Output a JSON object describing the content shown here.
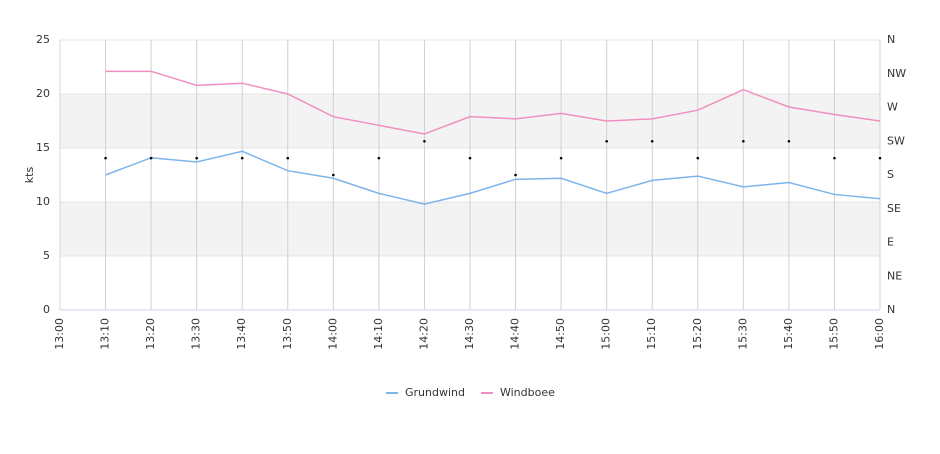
{
  "chart_data": {
    "type": "line",
    "ylabel": "kts",
    "categories": [
      "13:00",
      "13:10",
      "13:20",
      "13:30",
      "13:40",
      "13:50",
      "14:00",
      "14:10",
      "14:20",
      "14:30",
      "14:40",
      "14:50",
      "15:00",
      "15:10",
      "15:20",
      "15:30",
      "15:40",
      "15:50",
      "16:00"
    ],
    "series": [
      {
        "name": "Grundwind",
        "color": "#7cb5ec",
        "values": [
          null,
          12.5,
          14.1,
          13.7,
          14.7,
          12.9,
          12.2,
          10.8,
          9.8,
          10.8,
          12.1,
          12.2,
          10.8,
          12.0,
          12.4,
          11.4,
          11.8,
          10.7,
          10.3
        ]
      },
      {
        "name": "Windboee",
        "color": "#f08fc0",
        "values": [
          null,
          22.1,
          22.1,
          20.8,
          21.0,
          20.0,
          17.9,
          17.1,
          16.3,
          17.9,
          17.7,
          18.2,
          17.5,
          17.7,
          18.5,
          20.4,
          18.8,
          18.1,
          17.5
        ]
      }
    ],
    "direction": {
      "axis": "y2",
      "color": "#000000",
      "values": [
        null,
        202.5,
        202.5,
        202.5,
        202.5,
        202.5,
        180,
        202.5,
        225,
        202.5,
        180,
        202.5,
        225,
        225,
        202.5,
        225,
        225,
        202.5,
        202.5
      ]
    },
    "ylim": [
      0,
      25
    ],
    "yticks": [
      0,
      5,
      10,
      15,
      20,
      25
    ],
    "y2lim": [
      0,
      360
    ],
    "y2ticks": [
      {
        "value": 0,
        "label": "N"
      },
      {
        "value": 45,
        "label": "NE"
      },
      {
        "value": 90,
        "label": "E"
      },
      {
        "value": 135,
        "label": "SE"
      },
      {
        "value": 180,
        "label": "S"
      },
      {
        "value": 225,
        "label": "SW"
      },
      {
        "value": 270,
        "label": "W"
      },
      {
        "value": 315,
        "label": "NW"
      },
      {
        "value": 360,
        "label": "N"
      }
    ],
    "plot_bands": [
      {
        "from": 5,
        "to": 10
      },
      {
        "from": 15,
        "to": 20
      }
    ],
    "legend": "bottom"
  }
}
